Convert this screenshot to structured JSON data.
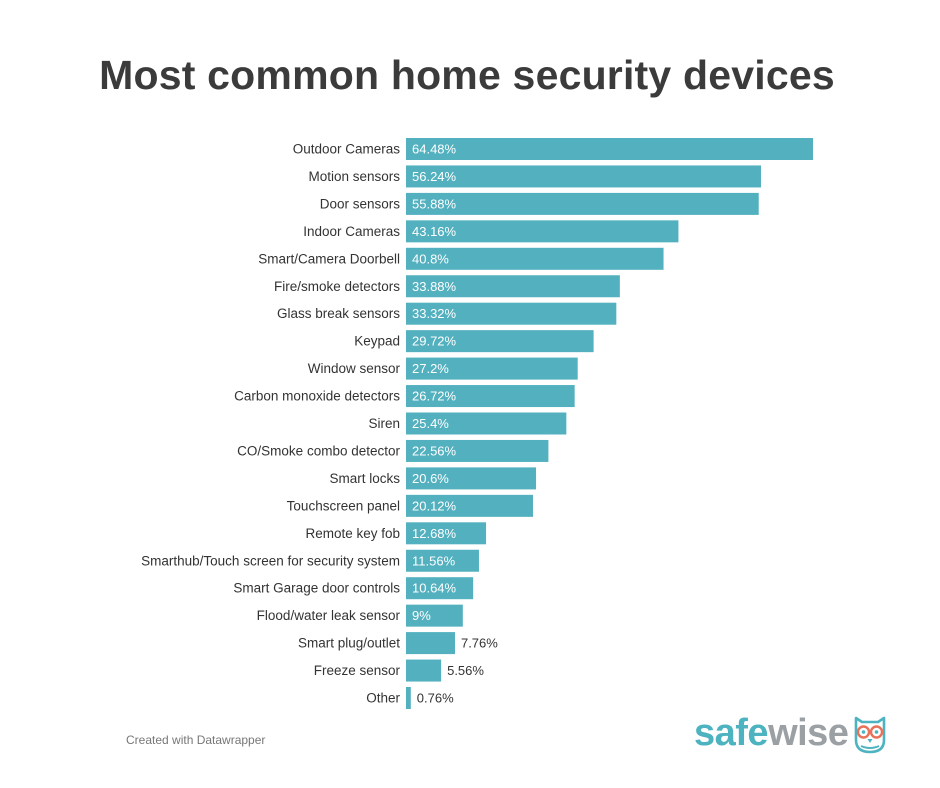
{
  "title": "Most common home security devices",
  "credit": "Created with Datawrapper",
  "logo": {
    "safe": "safe",
    "wise": "wise"
  },
  "colors": {
    "bar": "#52b0bf",
    "logo_primary": "#4db3c0",
    "logo_secondary": "#9aa0a4",
    "owl_accent": "#e8735a"
  },
  "chart_data": {
    "type": "bar",
    "orientation": "horizontal",
    "categories": [
      "Outdoor Cameras",
      "Motion sensors",
      "Door sensors",
      "Indoor Cameras",
      "Smart/Camera Doorbell",
      "Fire/smoke detectors",
      "Glass break sensors",
      "Keypad",
      "Window sensor",
      "Carbon monoxide detectors",
      "Siren",
      "CO/Smoke combo detector",
      "Smart locks",
      "Touchscreen panel",
      "Remote key fob",
      "Smarthub/Touch screen for security system",
      "Smart Garage door controls",
      "Flood/water leak sensor",
      "Smart plug/outlet",
      "Freeze sensor",
      "Other"
    ],
    "values": [
      64.48,
      56.24,
      55.88,
      43.16,
      40.8,
      33.88,
      33.32,
      29.72,
      27.2,
      26.72,
      25.4,
      22.56,
      20.6,
      20.12,
      12.68,
      11.56,
      10.64,
      9,
      7.76,
      5.56,
      0.76
    ],
    "value_labels": [
      "64.48%",
      "56.24%",
      "55.88%",
      "43.16%",
      "40.8%",
      "33.88%",
      "33.32%",
      "29.72%",
      "27.2%",
      "26.72%",
      "25.4%",
      "22.56%",
      "20.6%",
      "20.12%",
      "12.68%",
      "11.56%",
      "10.64%",
      "9%",
      "7.76%",
      "5.56%",
      "0.76%"
    ],
    "xlim": [
      0,
      64.48
    ],
    "grid": false,
    "legend": "none"
  }
}
